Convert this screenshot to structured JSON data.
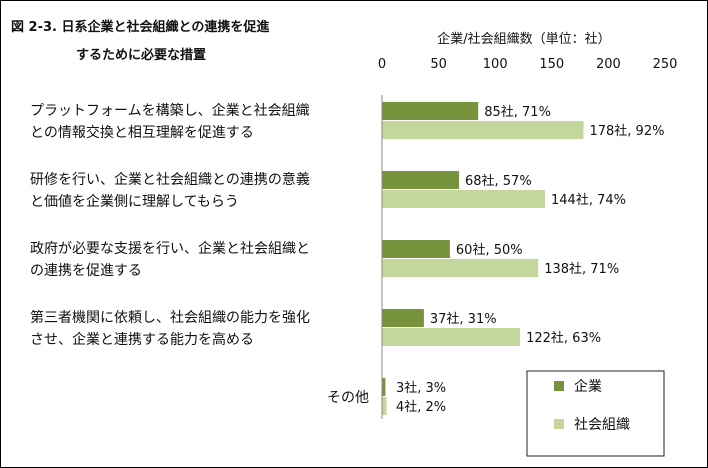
{
  "figure": {
    "title_line1": "図 2-3.  日系企業と社会組織との連携を促進",
    "title_line2": "するために必要な措置"
  },
  "chart_data": {
    "type": "bar",
    "orientation": "horizontal",
    "axis_title": "企業/社会組織数（単位：社）",
    "xlim": [
      0,
      250
    ],
    "ticks": [
      0,
      50,
      100,
      150,
      200,
      250
    ],
    "tick_labels": [
      "0",
      "50",
      "100",
      "150",
      "200",
      "250"
    ],
    "grid": false,
    "legend_position": "bottom-right",
    "categories": [
      [
        "プラットフォームを構築し、企業と社会組織",
        "との情報交換と相互理解を促進する"
      ],
      [
        "研修を行い、企業と社会組織との連携の意義",
        "と価値を企業側に理解してもらう"
      ],
      [
        "政府が必要な支援を行い、企業と社会組織と",
        "の連携を促進する"
      ],
      [
        "第三者機関に依頼し、社会組織の能力を強化",
        "させ、企業と連携する能力を高める"
      ],
      [
        "その他"
      ]
    ],
    "series": [
      {
        "name": "企業",
        "color": "#77933c",
        "values": [
          85,
          68,
          60,
          37,
          3
        ],
        "labels": [
          "85社, 71%",
          "68社, 57%",
          "60社, 50%",
          "37社, 31%",
          "3社, 3%"
        ]
      },
      {
        "name": "社会組織",
        "color": "#c3d69b",
        "values": [
          178,
          144,
          138,
          122,
          4
        ],
        "labels": [
          "178社, 92%",
          "144社, 74%",
          "138社, 71%",
          "122社, 63%",
          "4社, 2%"
        ]
      }
    ]
  }
}
